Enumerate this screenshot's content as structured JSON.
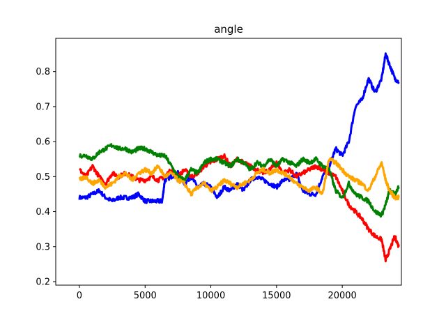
{
  "chart_data": {
    "type": "line",
    "title": "angle",
    "xlabel": "",
    "ylabel": "",
    "xlim": [
      -1800,
      24500
    ],
    "ylim": [
      0.19,
      0.895
    ],
    "xticks": [
      0,
      5000,
      10000,
      15000,
      20000
    ],
    "xtick_labels": [
      "0",
      "5000",
      "10000",
      "15000",
      "20000"
    ],
    "yticks": [
      0.2,
      0.3,
      0.4,
      0.5,
      0.6,
      0.7,
      0.8
    ],
    "ytick_labels": [
      "0.2",
      "0.3",
      "0.4",
      "0.5",
      "0.6",
      "0.7",
      "0.8"
    ],
    "grid": false,
    "legend": "none",
    "series": [
      {
        "color": "#0000ff",
        "x": [
          0,
          500,
          1000,
          1500,
          2000,
          2500,
          3000,
          3500,
          4000,
          4500,
          5000,
          5500,
          6000,
          6300,
          6500,
          7000,
          7500,
          8000,
          8500,
          9000,
          9500,
          10000,
          10500,
          11000,
          11500,
          12000,
          12500,
          13000,
          13500,
          14000,
          14500,
          15000,
          15500,
          16000,
          16500,
          17000,
          17500,
          18000,
          18500,
          19000,
          19500,
          20000,
          20500,
          21000,
          21500,
          22000,
          22500,
          23000,
          23300,
          23600,
          24000,
          24300
        ],
        "values": [
          0.44,
          0.44,
          0.45,
          0.46,
          0.44,
          0.43,
          0.44,
          0.44,
          0.44,
          0.45,
          0.43,
          0.43,
          0.43,
          0.43,
          0.49,
          0.5,
          0.51,
          0.48,
          0.5,
          0.47,
          0.48,
          0.47,
          0.44,
          0.47,
          0.46,
          0.48,
          0.46,
          0.49,
          0.5,
          0.49,
          0.48,
          0.47,
          0.49,
          0.49,
          0.51,
          0.46,
          0.45,
          0.45,
          0.5,
          0.53,
          0.58,
          0.56,
          0.6,
          0.7,
          0.72,
          0.78,
          0.74,
          0.78,
          0.85,
          0.82,
          0.78,
          0.77
        ]
      },
      {
        "color": "#ff0000",
        "x": [
          0,
          500,
          1000,
          1500,
          2000,
          2500,
          3000,
          3500,
          4000,
          4500,
          5000,
          5500,
          6000,
          6500,
          7000,
          7500,
          8000,
          8500,
          9000,
          9500,
          10000,
          10500,
          11000,
          11500,
          12000,
          12500,
          13000,
          13500,
          14000,
          14500,
          15000,
          15500,
          16000,
          16500,
          17000,
          17500,
          18000,
          18500,
          19000,
          19500,
          20000,
          20500,
          21000,
          21500,
          22000,
          22500,
          23000,
          23300,
          23600,
          24000,
          24300
        ],
        "values": [
          0.52,
          0.5,
          0.53,
          0.5,
          0.48,
          0.51,
          0.5,
          0.51,
          0.5,
          0.49,
          0.49,
          0.5,
          0.49,
          0.5,
          0.52,
          0.5,
          0.52,
          0.5,
          0.51,
          0.53,
          0.54,
          0.55,
          0.56,
          0.53,
          0.55,
          0.54,
          0.53,
          0.52,
          0.51,
          0.52,
          0.54,
          0.51,
          0.52,
          0.5,
          0.51,
          0.52,
          0.53,
          0.52,
          0.51,
          0.5,
          0.46,
          0.42,
          0.4,
          0.38,
          0.35,
          0.33,
          0.32,
          0.26,
          0.29,
          0.33,
          0.3
        ]
      },
      {
        "color": "#008000",
        "x": [
          0,
          500,
          1000,
          1500,
          2000,
          2500,
          3000,
          3500,
          4000,
          4500,
          5000,
          5500,
          6000,
          6500,
          7000,
          7500,
          8000,
          8500,
          9000,
          9500,
          10000,
          10500,
          11000,
          11500,
          12000,
          12500,
          13000,
          13500,
          14000,
          14500,
          15000,
          15500,
          16000,
          16500,
          17000,
          17500,
          18000,
          18500,
          19000,
          19500,
          20000,
          20500,
          21000,
          21500,
          22000,
          22500,
          23000,
          23300,
          23600,
          24000,
          24300
        ],
        "values": [
          0.56,
          0.56,
          0.55,
          0.57,
          0.58,
          0.59,
          0.58,
          0.58,
          0.57,
          0.58,
          0.58,
          0.57,
          0.56,
          0.56,
          0.53,
          0.5,
          0.49,
          0.52,
          0.51,
          0.54,
          0.55,
          0.55,
          0.54,
          0.53,
          0.55,
          0.54,
          0.52,
          0.54,
          0.53,
          0.55,
          0.53,
          0.55,
          0.54,
          0.53,
          0.55,
          0.54,
          0.55,
          0.53,
          0.52,
          0.46,
          0.44,
          0.48,
          0.45,
          0.44,
          0.43,
          0.4,
          0.39,
          0.42,
          0.46,
          0.45,
          0.47
        ]
      },
      {
        "color": "#ffa500",
        "x": [
          0,
          500,
          1000,
          1500,
          2000,
          2500,
          3000,
          3500,
          4000,
          4500,
          5000,
          5500,
          6000,
          6500,
          7000,
          7500,
          8000,
          8500,
          9000,
          9500,
          10000,
          10500,
          11000,
          11500,
          12000,
          12500,
          13000,
          13500,
          14000,
          14500,
          15000,
          15500,
          16000,
          16500,
          17000,
          17500,
          18000,
          18500,
          19000,
          19500,
          20000,
          20500,
          21000,
          21500,
          22000,
          22500,
          23000,
          23300,
          23600,
          24000,
          24300
        ],
        "values": [
          0.49,
          0.5,
          0.48,
          0.49,
          0.47,
          0.48,
          0.5,
          0.51,
          0.49,
          0.51,
          0.52,
          0.51,
          0.53,
          0.5,
          0.51,
          0.49,
          0.48,
          0.45,
          0.47,
          0.48,
          0.46,
          0.47,
          0.49,
          0.48,
          0.47,
          0.48,
          0.49,
          0.51,
          0.52,
          0.51,
          0.52,
          0.51,
          0.5,
          0.48,
          0.47,
          0.46,
          0.47,
          0.45,
          0.55,
          0.54,
          0.52,
          0.5,
          0.49,
          0.48,
          0.46,
          0.5,
          0.54,
          0.49,
          0.46,
          0.44,
          0.44
        ]
      }
    ]
  }
}
